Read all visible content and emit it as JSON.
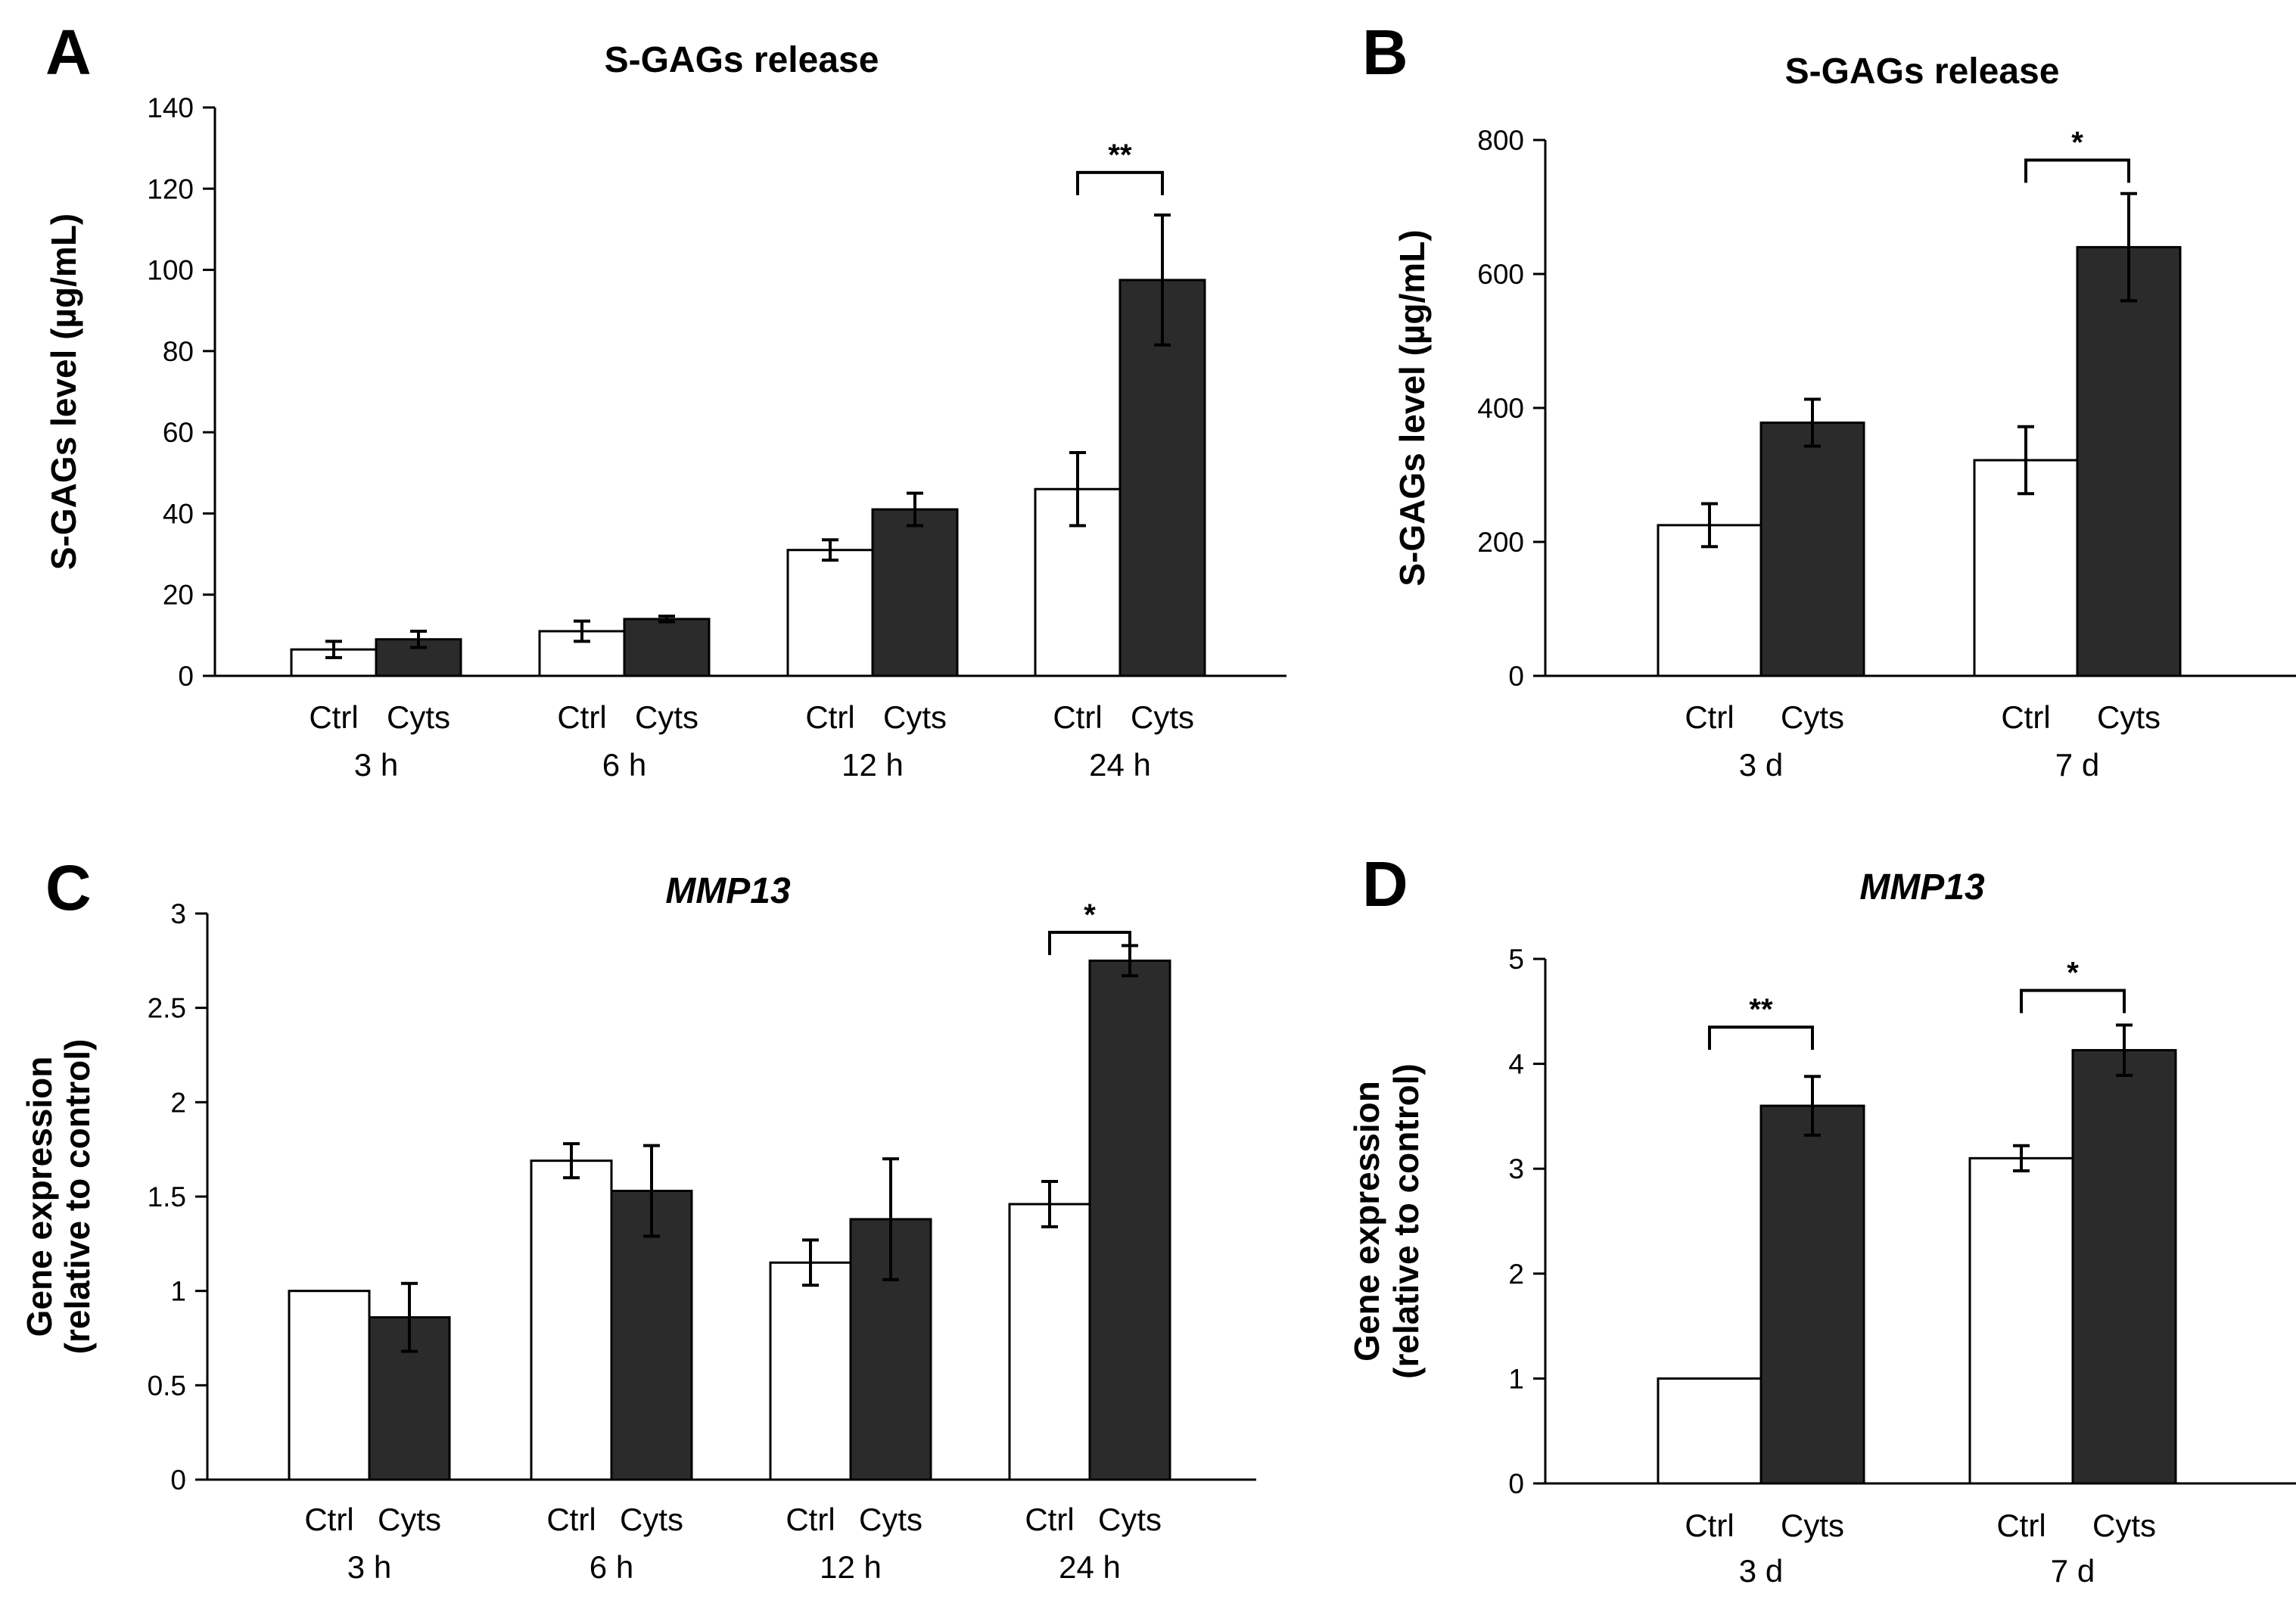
{
  "chart_data": [
    {
      "panel": "A",
      "type": "bar",
      "title": "S-GAGs release",
      "title_italic": false,
      "ylabel_lines": [
        "S-GAGs level (µg/mL)"
      ],
      "ylim": [
        0,
        140
      ],
      "yticks": [
        "0",
        "20",
        "40",
        "60",
        "80",
        "100",
        "120",
        "140"
      ],
      "tick_values": [
        0,
        20,
        40,
        60,
        80,
        100,
        120,
        140
      ],
      "colors": {
        "ctrl": "#ffffff",
        "cyts": "#2b2b2b"
      },
      "groups": [
        {
          "name": "3 h",
          "labels": [
            "Ctrl",
            "Cyts"
          ],
          "values": [
            6.5,
            9.0
          ],
          "errors": [
            2.0,
            2.0
          ]
        },
        {
          "name": "6 h",
          "labels": [
            "Ctrl",
            "Cyts"
          ],
          "values": [
            11.0,
            14.0
          ],
          "errors": [
            2.5,
            0.7
          ]
        },
        {
          "name": "12 h",
          "labels": [
            "Ctrl",
            "Cyts"
          ],
          "values": [
            31.0,
            41.0
          ],
          "errors": [
            2.5,
            4.0
          ]
        },
        {
          "name": "24 h",
          "labels": [
            "Ctrl",
            "Cyts"
          ],
          "values": [
            46.0,
            97.5
          ],
          "errors": [
            9.0,
            16.0
          ]
        }
      ],
      "annotations": [
        {
          "group": 3,
          "text": "**",
          "y": 124
        }
      ]
    },
    {
      "panel": "B",
      "type": "bar",
      "title": "S-GAGs release",
      "title_italic": false,
      "ylabel_lines": [
        "S-GAGs level (µg/mL)"
      ],
      "ylim": [
        0,
        800
      ],
      "yticks": [
        "0",
        "200",
        "400",
        "600",
        "800"
      ],
      "tick_values": [
        0,
        200,
        400,
        600,
        800
      ],
      "colors": {
        "ctrl": "#ffffff",
        "cyts": "#2b2b2b"
      },
      "groups": [
        {
          "name": "3 d",
          "labels": [
            "Ctrl",
            "Cyts"
          ],
          "values": [
            225,
            378
          ],
          "errors": [
            32,
            35
          ]
        },
        {
          "name": "7 d",
          "labels": [
            "Ctrl",
            "Cyts"
          ],
          "values": [
            322,
            640
          ],
          "errors": [
            50,
            80
          ]
        }
      ],
      "annotations": [
        {
          "group": 1,
          "text": "*",
          "y": 770
        }
      ]
    },
    {
      "panel": "C",
      "type": "bar",
      "title": "MMP13",
      "title_italic": true,
      "ylabel_lines": [
        "Gene expression",
        "(relative to control)"
      ],
      "ylim": [
        0,
        3
      ],
      "yticks": [
        "0",
        "0.5",
        "1",
        "1.5",
        "2",
        "2.5",
        "3"
      ],
      "tick_values": [
        0,
        0.5,
        1,
        1.5,
        2,
        2.5,
        3
      ],
      "colors": {
        "ctrl": "#ffffff",
        "cyts": "#2b2b2b"
      },
      "groups": [
        {
          "name": "3 h",
          "labels": [
            "Ctrl",
            "Cyts"
          ],
          "values": [
            1.0,
            0.86
          ],
          "errors": [
            0,
            0.18
          ]
        },
        {
          "name": "6 h",
          "labels": [
            "Ctrl",
            "Cyts"
          ],
          "values": [
            1.69,
            1.53
          ],
          "errors": [
            0.09,
            0.24
          ]
        },
        {
          "name": "12 h",
          "labels": [
            "Ctrl",
            "Cyts"
          ],
          "values": [
            1.15,
            1.38
          ],
          "errors": [
            0.12,
            0.32
          ]
        },
        {
          "name": "24 h",
          "labels": [
            "Ctrl",
            "Cyts"
          ],
          "values": [
            1.46,
            2.75
          ],
          "errors": [
            0.12,
            0.08
          ]
        }
      ],
      "annotations": [
        {
          "group": 3,
          "text": "*",
          "y": 2.9
        }
      ]
    },
    {
      "panel": "D",
      "type": "bar",
      "title": "MMP13",
      "title_italic": true,
      "ylabel_lines": [
        "Gene expression",
        "(relative to control)"
      ],
      "ylim": [
        0,
        5
      ],
      "yticks": [
        "0",
        "1",
        "2",
        "3",
        "4",
        "5"
      ],
      "tick_values": [
        0,
        1,
        2,
        3,
        4,
        5
      ],
      "colors": {
        "ctrl": "#ffffff",
        "cyts": "#2b2b2b"
      },
      "groups": [
        {
          "name": "3 d",
          "labels": [
            "Ctrl",
            "Cyts"
          ],
          "values": [
            1.0,
            3.6
          ],
          "errors": [
            0,
            0.28
          ]
        },
        {
          "name": "7 d",
          "labels": [
            "Ctrl",
            "Cyts"
          ],
          "values": [
            3.1,
            4.13
          ],
          "errors": [
            0.12,
            0.24
          ]
        }
      ],
      "annotations": [
        {
          "group": 0,
          "text": "**",
          "y": 4.35
        },
        {
          "group": 1,
          "text": "*",
          "y": 4.7
        }
      ]
    }
  ]
}
